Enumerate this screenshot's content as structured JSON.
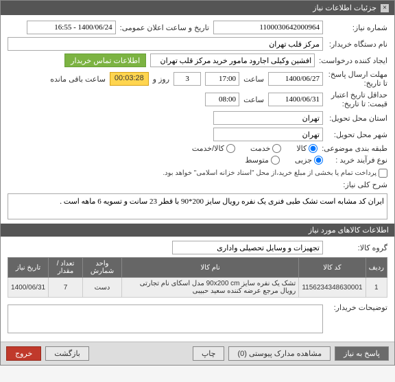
{
  "titlebar": {
    "title": "جزئیات اطلاعات نیاز"
  },
  "fields": {
    "need_number_label": "شماره نیاز:",
    "need_number": "1100030642000964",
    "public_announce_label": "تاریخ و ساعت اعلان عمومی:",
    "public_announce": "1400/06/24 - 16:55",
    "buyer_device_label": "نام دستگاه خریدار:",
    "buyer_device": "مرکز قلب تهران",
    "requester_label": "ایجاد کننده درخواست:",
    "requester": "افشین وکیلی اجارود مامور خرید مرکز قلب تهران",
    "contact_btn": "اطلاعات تماس خریدار",
    "send_deadline_label": "مهلت ارسال پاسخ:",
    "send_deadline_eta_label": "تا تاریخ:",
    "send_deadline_date": "1400/06/27",
    "time_label": "ساعت",
    "send_deadline_time": "17:00",
    "day_and_label": "روز و",
    "days_left": "3",
    "remaining_label": "ساعت باقی مانده",
    "remaining_time": "00:03:28",
    "price_validity_label": "حداقل تاریخ اعتبار",
    "price_validity_sub": "قیمت: تا تاریخ:",
    "price_validity_date": "1400/06/31",
    "price_validity_time": "08:00",
    "exec_city_label": "استان محل تحویل:",
    "exec_city": "تهران",
    "deliver_city_label": "شهر محل تحویل:",
    "deliver_city": "تهران",
    "category_label": "طبقه بندی موضوعی:",
    "goods_opt": "کالا",
    "service_opt": "خدمت",
    "goods_service_opt": "کالا/خدمت",
    "process_label": "نوع فرآیند خرید :",
    "partial_opt": "جزیی",
    "medium_opt": "متوسط",
    "process_note": "پرداخت تمام یا بخشی از مبلغ خرید،از محل \"اسناد خزانه اسلامی\" خواهد بود.",
    "summary_label": "شرح کلی نیاز:",
    "summary_text": "ایران کد مشابه است تشک طبی فنری یک نفره رویال سایز 200*90 با قطر 23 سانت و تسویه 6 ماهه است .",
    "items_section": "اطلاعات کالاهای مورد نیاز",
    "group_label": "گروه کالا:",
    "group_value": "تجهیزات و وسایل تحصیلی واداری",
    "buyer_comment_label": "توضیحات خریدار:"
  },
  "table": {
    "headers": [
      "ردیف",
      "کد کالا",
      "نام کالا",
      "واحد شمارش",
      "تعداد / مقدار",
      "تاریخ نیاز"
    ],
    "rows": [
      {
        "idx": "1",
        "code": "1156234348630001",
        "name": "تشک یک نفره سایز 90x200 cm مدل اسکای نام تجارتی رویال مرجع عرضه کننده سعید حبیبی",
        "unit": "دست",
        "qty": "7",
        "date": "1400/06/31"
      }
    ]
  },
  "footer": {
    "reply": "پاسخ به نیاز",
    "attachments": "مشاهده مدارک پیوستی (0)",
    "print": "چاپ",
    "back": "بازگشت",
    "exit": "خروج"
  }
}
